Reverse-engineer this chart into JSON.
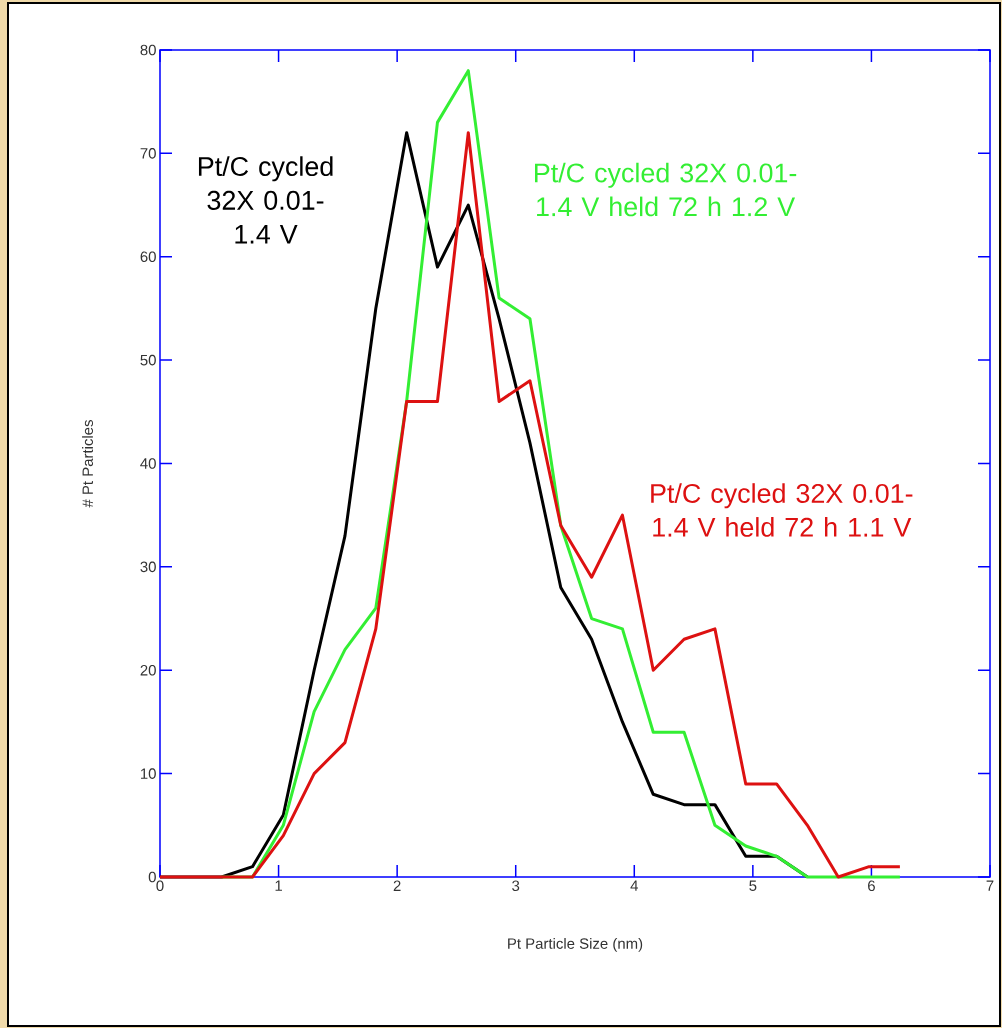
{
  "chart_data": {
    "type": "line",
    "xlabel": "Pt Particle Size (nm)",
    "ylabel": "# Pt Particles",
    "xlim": [
      0,
      7
    ],
    "ylim": [
      0,
      80
    ],
    "xticks": [
      0,
      1,
      2,
      3,
      4,
      5,
      6,
      7
    ],
    "yticks": [
      0,
      10,
      20,
      30,
      40,
      50,
      60,
      70,
      80
    ],
    "x": [
      0,
      0.26,
      0.52,
      0.78,
      1.04,
      1.3,
      1.56,
      1.82,
      2.08,
      2.34,
      2.6,
      2.86,
      3.12,
      3.38,
      3.64,
      3.9,
      4.16,
      4.42,
      4.68,
      4.94,
      5.2,
      5.46,
      5.72,
      5.98,
      6.24
    ],
    "grid": false,
    "legend": false,
    "marker": "none",
    "line_style": "solid",
    "series": [
      {
        "name": "Pt/C cycled 32X 0.01-1.4 V",
        "color": "#000000",
        "values": [
          0,
          0,
          0,
          1,
          6,
          20,
          33,
          55,
          72,
          59,
          65,
          54,
          42,
          28,
          23,
          15,
          8,
          7,
          7,
          2,
          2,
          0,
          null,
          null,
          null
        ]
      },
      {
        "name": "Pt/C cycled 32X 0.01-1.4 V held 72 h 1.2 V",
        "color": "#33ee33",
        "values": [
          null,
          null,
          0,
          0,
          5,
          16,
          22,
          26,
          46,
          73,
          78,
          56,
          54,
          34,
          25,
          24,
          14,
          14,
          5,
          3,
          2,
          0,
          0,
          0,
          0
        ]
      },
      {
        "name": "Pt/C cycled 32X 0.01-1.4 V held 72 h 1.1 V",
        "color": "#dd1111",
        "values": [
          0,
          0,
          0,
          0,
          4,
          10,
          13,
          24,
          46,
          46,
          72,
          46,
          48,
          34,
          29,
          35,
          20,
          23,
          24,
          9,
          9,
          5,
          0,
          1,
          1
        ]
      }
    ]
  }
}
